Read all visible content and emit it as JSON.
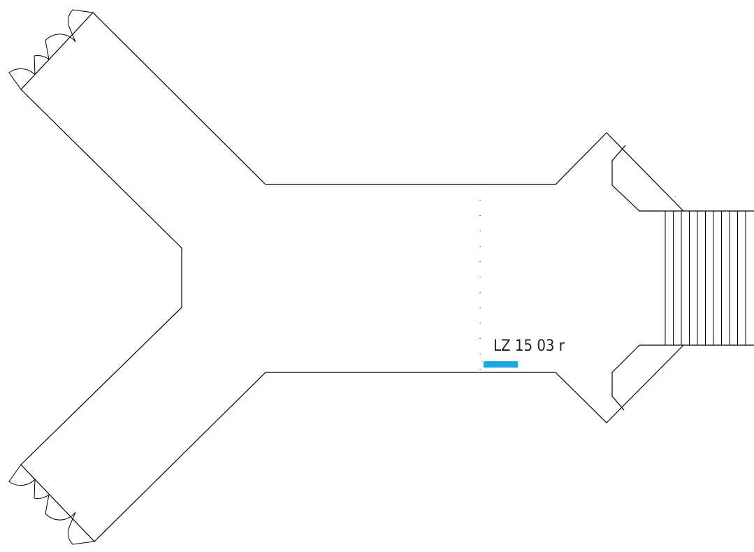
{
  "room_label": "LZ 15 03 r"
}
